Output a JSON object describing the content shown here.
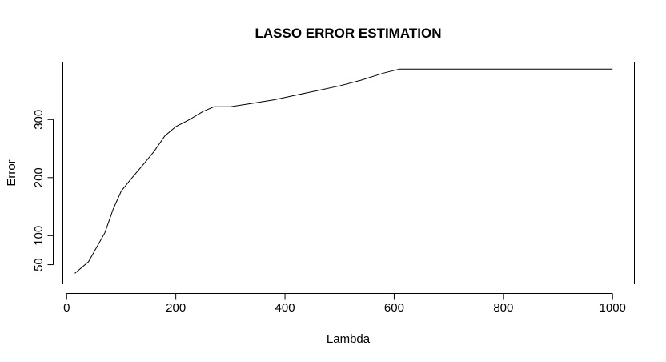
{
  "chart_data": {
    "type": "line",
    "title": "LASSO ERROR ESTIMATION",
    "xlabel": "Lambda",
    "ylabel": "Error",
    "xlim": [
      -7,
      1040
    ],
    "ylim": [
      17,
      399
    ],
    "x_ticks": [
      0,
      200,
      400,
      600,
      800,
      1000
    ],
    "x_tick_labels": [
      "0",
      "200",
      "400",
      "600",
      "800",
      "1000"
    ],
    "y_ticks": [
      50,
      100,
      200,
      300
    ],
    "y_tick_labels": [
      "50",
      "100",
      "200",
      "300"
    ],
    "grid": false,
    "legend": "none",
    "series": [
      {
        "color": "#000000",
        "x": [
          15,
          40,
          55,
          70,
          85,
          100,
          120,
          140,
          160,
          180,
          200,
          225,
          250,
          270,
          300,
          340,
          380,
          420,
          460,
          500,
          540,
          580,
          610,
          700,
          800,
          900,
          1000
        ],
        "y": [
          35,
          55,
          80,
          105,
          145,
          177,
          200,
          222,
          245,
          272,
          288,
          300,
          314,
          322,
          322,
          328,
          334,
          342,
          350,
          358,
          368,
          380,
          387,
          387,
          387,
          387,
          387
        ]
      }
    ]
  }
}
